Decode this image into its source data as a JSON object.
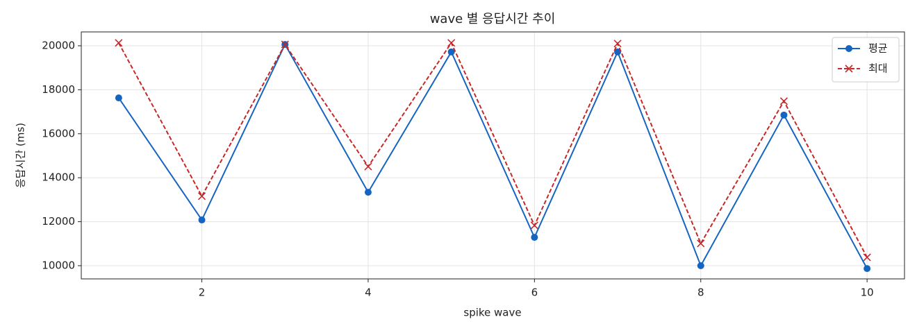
{
  "chart_data": {
    "type": "line",
    "title": "wave 별 응답시간 추이",
    "x_label": "spike wave",
    "y_label": "응답시간 (ms)",
    "x": [
      1,
      2,
      3,
      4,
      5,
      6,
      7,
      8,
      9,
      10
    ],
    "series": [
      {
        "name": "평균",
        "color": "#1565c0",
        "marker": "circle",
        "dash": "solid",
        "values": [
          17630,
          12080,
          20060,
          13340,
          19720,
          11290,
          19720,
          10000,
          16850,
          9870
        ]
      },
      {
        "name": "최대",
        "color": "#c62828",
        "marker": "x",
        "dash": "dashed",
        "values": [
          20130,
          13160,
          20060,
          14510,
          20130,
          11830,
          20100,
          11010,
          17480,
          10380
        ]
      }
    ],
    "xlim": [
      0.55,
      10.45
    ],
    "ylim": [
      9400,
      20630
    ],
    "xticks": [
      2,
      4,
      6,
      8,
      10
    ],
    "yticks": [
      10000,
      12000,
      14000,
      16000,
      18000,
      20000
    ],
    "grid": true,
    "legend": "upper-right"
  }
}
